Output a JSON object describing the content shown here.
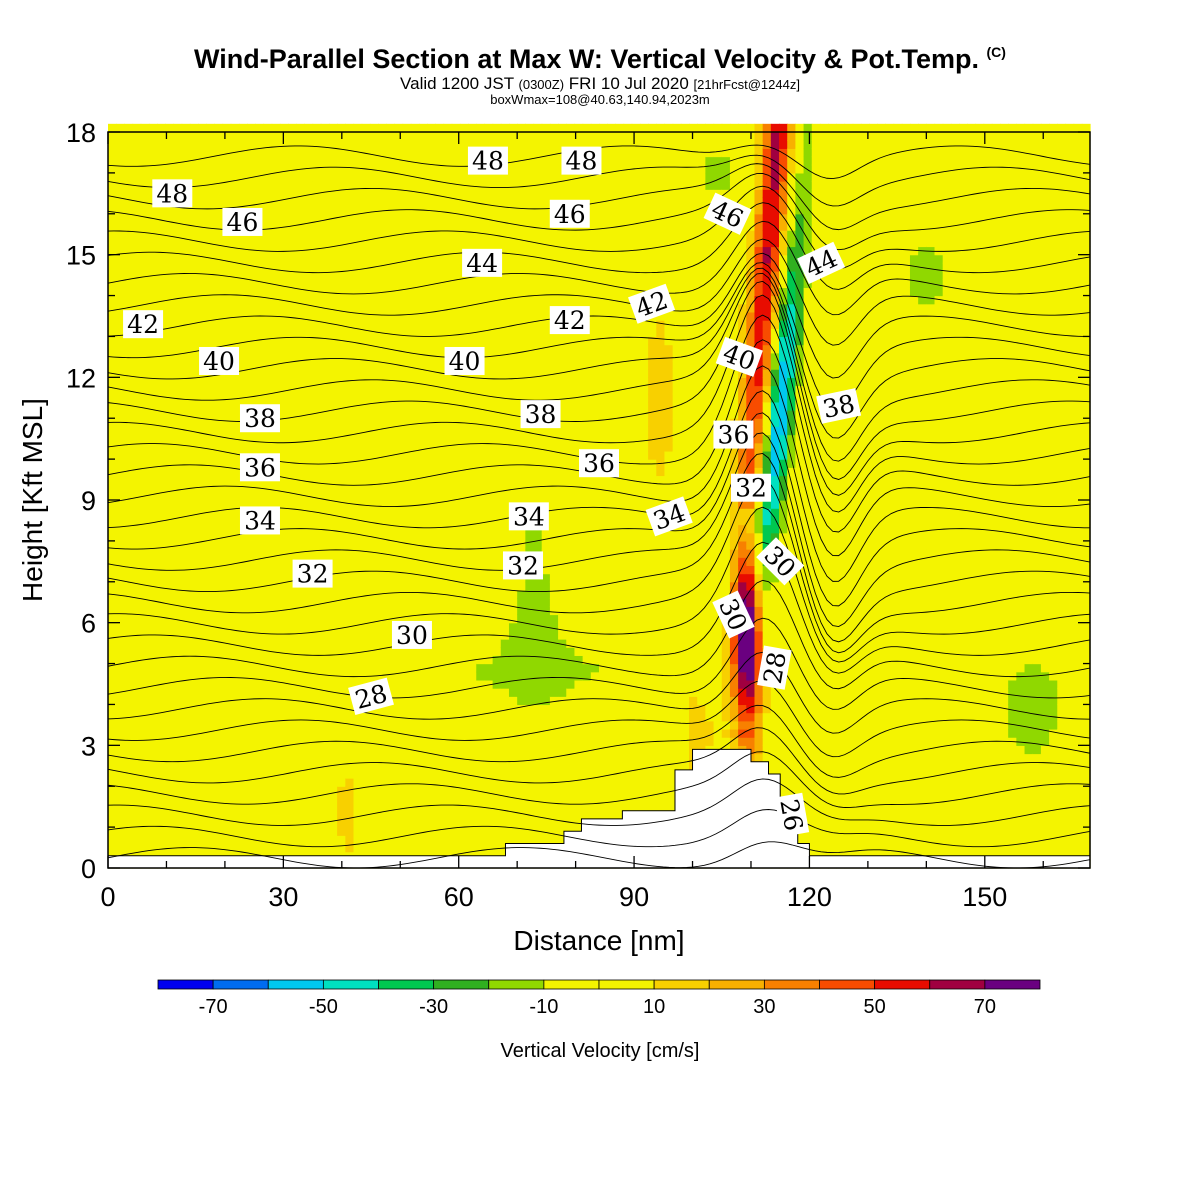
{
  "header": {
    "title": "Wind-Parallel Section at Max W: Vertical Velocity & Pot.Temp.",
    "copyright": "(C)",
    "valid_prefix": "Valid 1200 JST",
    "utc": "(0300Z)",
    "valid_date": "FRI 10 Jul 2020",
    "forecast": "[21hrFcst@1244z]",
    "box_info": "boxWmax=108@40.63,140.94,2023m"
  },
  "chart_data": {
    "type": "heatmap",
    "title": "Wind-Parallel Section at Max W: Vertical Velocity & Pot.Temp.",
    "xlabel": "Distance [nm]",
    "ylabel": "Height [Kft MSL]",
    "xlim": [
      0,
      168
    ],
    "ylim": [
      0,
      18
    ],
    "x_ticks": [
      "0",
      "30",
      "60",
      "90",
      "120",
      "150"
    ],
    "y_ticks": [
      "0",
      "3",
      "6",
      "9",
      "12",
      "15",
      "18"
    ],
    "colorbar": {
      "label": "Vertical Velocity [cm/s]",
      "tick_labels": [
        "-70",
        "-50",
        "-30",
        "-10",
        "10",
        "30",
        "50",
        "70"
      ],
      "levels": [
        -80,
        -70,
        -60,
        -50,
        -40,
        -30,
        -20,
        -10,
        0,
        10,
        20,
        30,
        40,
        50,
        60,
        70,
        80
      ],
      "colors": [
        "#0000f0",
        "#006cf0",
        "#00c8f0",
        "#00e0c0",
        "#00c850",
        "#30b020",
        "#90d800",
        "#f4f400",
        "#f4f400",
        "#f8d000",
        "#f8b000",
        "#f88000",
        "#f84c00",
        "#e80c00",
        "#a00040",
        "#6a0080"
      ]
    },
    "updraft_core": [
      {
        "x": 109.5,
        "y_min": 2.2,
        "y_max": 8.8,
        "w_max": 108
      },
      {
        "x": 118,
        "y_min": 8,
        "y_max": 18,
        "w_max": 60
      }
    ],
    "downdraft_core": [
      {
        "x": 113.5,
        "y_min": 5,
        "y_max": 17.5,
        "w_min": -55
      }
    ],
    "terrain_kft": {
      "x": [
        0,
        68,
        78,
        81,
        88,
        97,
        100,
        104,
        110,
        113,
        115,
        118,
        120,
        168
      ],
      "h": [
        0.3,
        0.6,
        0.9,
        1.2,
        1.4,
        2.4,
        2.9,
        2.9,
        2.6,
        2.3,
        1.6,
        0.6,
        0.3,
        0.3
      ]
    },
    "theta_contour_labels": [
      "48",
      "48",
      "48",
      "46",
      "46",
      "46",
      "44",
      "44",
      "42",
      "42",
      "42",
      "40",
      "40",
      "40",
      "38",
      "38",
      "38",
      "36",
      "36",
      "36",
      "34",
      "34",
      "34",
      "32",
      "32",
      "32",
      "30",
      "30",
      "30",
      "28",
      "28",
      "26"
    ]
  },
  "colors": {
    "background": "#ffffff",
    "contour": "#000000",
    "terrain": "#ffffff"
  }
}
